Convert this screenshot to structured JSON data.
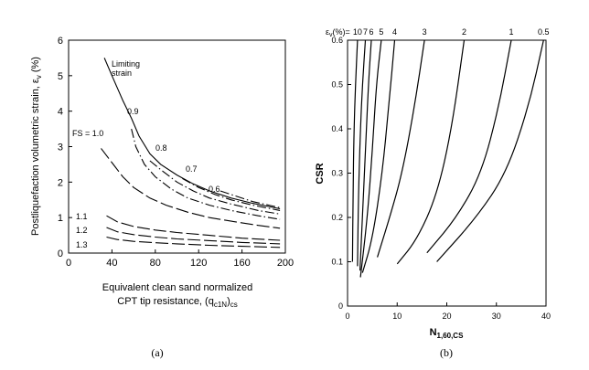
{
  "figure_labels": {
    "a": "(a)",
    "b": "(b)"
  },
  "chart_data": [
    {
      "type": "line",
      "panel": "(a)",
      "title": "",
      "xlabel_line1": "Equivalent clean sand normalized",
      "xlabel_line2": "CPT tip resistance,  (q",
      "xlabel_sub": "c1N",
      "xlabel_end": ")",
      "xlabel_sub2": "cs",
      "ylabel": "Postliquefaction volumetric strain, ε",
      "ylabel_sub": "v",
      "ylabel_unit": " (%)",
      "xlim": [
        0,
        200
      ],
      "ylim": [
        0,
        6
      ],
      "xticks": [
        0,
        40,
        80,
        120,
        160,
        200
      ],
      "yticks": [
        0,
        1,
        2,
        3,
        4,
        5,
        6
      ],
      "grid": false,
      "series": [
        {
          "name": "Limiting strain",
          "label": "Limiting\nstrain",
          "dash": "solid",
          "x": [
            33,
            40,
            50,
            58,
            65,
            75,
            85,
            100,
            115,
            130,
            150,
            170,
            195
          ],
          "y": [
            5.5,
            5.0,
            4.3,
            3.8,
            3.3,
            2.8,
            2.5,
            2.2,
            1.95,
            1.75,
            1.55,
            1.4,
            1.25
          ]
        },
        {
          "name": "FS = 1.0",
          "label": "FS = 1.0",
          "dash": "long",
          "x": [
            30,
            40,
            50,
            60,
            75,
            90,
            110,
            130,
            150,
            175,
            195
          ],
          "y": [
            2.95,
            2.55,
            2.15,
            1.85,
            1.55,
            1.35,
            1.15,
            1.0,
            0.9,
            0.78,
            0.7
          ]
        },
        {
          "name": "0.9",
          "label": "0.9",
          "dash": "dashdot",
          "x": [
            58,
            62,
            70,
            80,
            95,
            110,
            130,
            150,
            175,
            195
          ],
          "y": [
            3.5,
            3.0,
            2.5,
            2.15,
            1.8,
            1.55,
            1.35,
            1.2,
            1.05,
            0.95
          ]
        },
        {
          "name": "0.8",
          "label": "0.8",
          "dash": "dashdot",
          "x": [
            75,
            85,
            100,
            115,
            130,
            150,
            175,
            195
          ],
          "y": [
            2.6,
            2.35,
            2.0,
            1.75,
            1.55,
            1.38,
            1.2,
            1.1
          ]
        },
        {
          "name": "0.7",
          "label": "0.7",
          "dash": "dashdot",
          "x": [
            105,
            120,
            135,
            150,
            170,
            195
          ],
          "y": [
            2.1,
            1.85,
            1.65,
            1.5,
            1.35,
            1.2
          ]
        },
        {
          "name": "0.6",
          "label": "0.6",
          "dash": "dashdot",
          "x": [
            140,
            155,
            170,
            185,
            195
          ],
          "y": [
            1.75,
            1.6,
            1.45,
            1.35,
            1.28
          ]
        },
        {
          "name": "1.1",
          "label": "1.1",
          "dash": "long",
          "x": [
            35,
            45,
            60,
            80,
            100,
            130,
            160,
            195
          ],
          "y": [
            1.05,
            0.88,
            0.75,
            0.65,
            0.58,
            0.5,
            0.42,
            0.36
          ]
        },
        {
          "name": "1.2",
          "label": "1.2",
          "dash": "long",
          "x": [
            35,
            45,
            60,
            80,
            100,
            130,
            160,
            195
          ],
          "y": [
            0.72,
            0.6,
            0.52,
            0.45,
            0.4,
            0.35,
            0.3,
            0.26
          ]
        },
        {
          "name": "1.3",
          "label": "1.3",
          "dash": "long",
          "x": [
            35,
            45,
            60,
            80,
            100,
            130,
            160,
            195
          ],
          "y": [
            0.45,
            0.38,
            0.33,
            0.29,
            0.26,
            0.22,
            0.19,
            0.16
          ]
        }
      ]
    },
    {
      "type": "line",
      "panel": "(b)",
      "title": "",
      "legend_prefix": "ε",
      "legend_sub": "v",
      "legend_suffix": "(%)=",
      "xlabel": "N",
      "xlabel_sub": "1,60,CS",
      "ylabel": "CSR",
      "xlim": [
        0,
        40
      ],
      "ylim": [
        0,
        0.6
      ],
      "xticks": [
        0,
        10,
        20,
        30,
        40
      ],
      "yticks": [
        0,
        0.1,
        0.2,
        0.3,
        0.4,
        0.5,
        0.6
      ],
      "grid": false,
      "series": [
        {
          "name": "10",
          "label": "10",
          "x": [
            1.0,
            1.1,
            1.3,
            1.6,
            2.0
          ],
          "y": [
            0.1,
            0.25,
            0.4,
            0.5,
            0.6
          ]
        },
        {
          "name": "7",
          "label": "7",
          "x": [
            2.0,
            2.2,
            2.6,
            3.0,
            3.6
          ],
          "y": [
            0.09,
            0.25,
            0.4,
            0.5,
            0.6
          ]
        },
        {
          "name": "6",
          "label": "6",
          "x": [
            2.5,
            3.0,
            3.6,
            4.2,
            4.8
          ],
          "y": [
            0.08,
            0.2,
            0.35,
            0.5,
            0.6
          ]
        },
        {
          "name": "5",
          "label": "5",
          "x": [
            2.6,
            4.0,
            5.0,
            5.8,
            6.8
          ],
          "y": [
            0.065,
            0.2,
            0.35,
            0.5,
            0.6
          ]
        },
        {
          "name": "4",
          "label": "4",
          "x": [
            3.0,
            5.0,
            7.0,
            8.3,
            9.5
          ],
          "y": [
            0.075,
            0.15,
            0.3,
            0.45,
            0.6
          ]
        },
        {
          "name": "3",
          "label": "3",
          "x": [
            6.0,
            8.5,
            11.0,
            13.5,
            15.5
          ],
          "y": [
            0.11,
            0.2,
            0.3,
            0.45,
            0.6
          ]
        },
        {
          "name": "2",
          "label": "2",
          "x": [
            10.0,
            14.0,
            18.0,
            21.0,
            23.5
          ],
          "y": [
            0.095,
            0.15,
            0.25,
            0.4,
            0.6
          ]
        },
        {
          "name": "1",
          "label": "1",
          "x": [
            16.0,
            22.0,
            27.0,
            30.5,
            33.0
          ],
          "y": [
            0.12,
            0.2,
            0.3,
            0.45,
            0.6
          ]
        },
        {
          "name": "0.5",
          "label": "0.5",
          "x": [
            18.0,
            26.0,
            32.0,
            36.5,
            39.5
          ],
          "y": [
            0.1,
            0.2,
            0.3,
            0.45,
            0.6
          ]
        }
      ]
    }
  ]
}
